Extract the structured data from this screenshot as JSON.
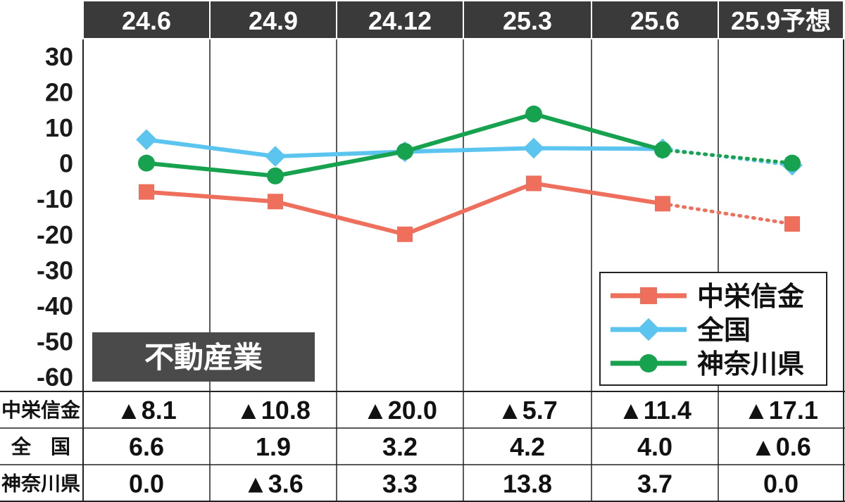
{
  "chart_data": {
    "type": "line",
    "categories": [
      "24.6",
      "24.9",
      "24.12",
      "25.3",
      "25.6",
      "25.9予想"
    ],
    "ylim": [
      -60,
      30
    ],
    "yticks": [
      "30",
      "20",
      "10",
      "0",
      "-10",
      "-20",
      "-30",
      "-40",
      "-50",
      "-60"
    ],
    "panel_label": "不動産業",
    "forecast_from_index": 4,
    "legend_position": "bottom-right",
    "series": [
      {
        "name": "中栄信金",
        "color": "#ee6f5c",
        "marker": "square",
        "values": [
          -8.1,
          -10.8,
          -20.0,
          -5.7,
          -11.4,
          -17.1
        ],
        "table_values": [
          "▲8.1",
          "▲10.8",
          "▲20.0",
          "▲5.7",
          "▲11.4",
          "▲17.1"
        ]
      },
      {
        "name": "全国",
        "color": "#5cc5ef",
        "marker": "diamond",
        "values": [
          6.6,
          1.9,
          3.2,
          4.2,
          4.0,
          -0.6
        ],
        "table_values": [
          "6.6",
          "1.9",
          "3.2",
          "4.2",
          "4.0",
          "▲0.6"
        ]
      },
      {
        "name": "神奈川県",
        "color": "#16a24f",
        "marker": "circle",
        "values": [
          0.0,
          -3.6,
          3.3,
          13.8,
          3.7,
          0.0
        ],
        "table_values": [
          "0.0",
          "▲3.6",
          "3.3",
          "13.8",
          "3.7",
          "0.0"
        ]
      }
    ],
    "row_labels": [
      "中栄信金",
      "全　国",
      "神奈川県"
    ]
  }
}
